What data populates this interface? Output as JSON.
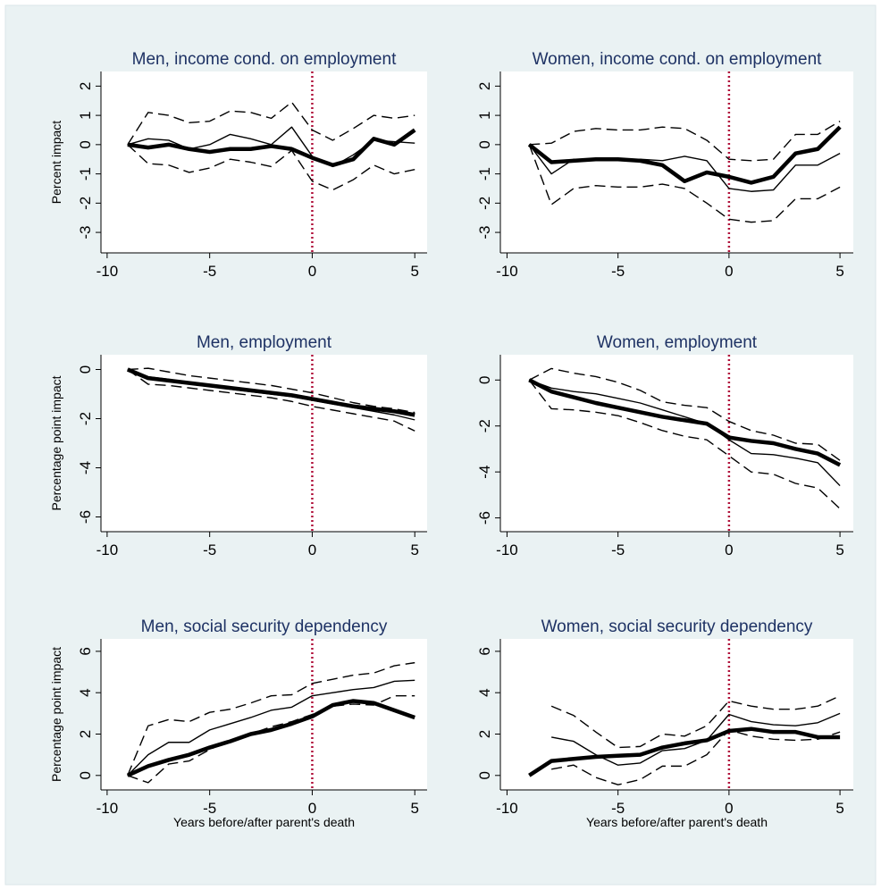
{
  "chart_data": [
    {
      "type": "line",
      "title": "Men, income cond. on employment",
      "ylabel": "Percent impact",
      "x": [
        -9,
        -8,
        -7,
        -6,
        -5,
        -4,
        -3,
        -2,
        -1,
        0,
        1,
        2,
        3,
        4,
        5
      ],
      "xlim": [
        -10.3,
        5.6
      ],
      "xticks": [
        -10,
        -5,
        0,
        5
      ],
      "ylim": [
        -3.7,
        2.5
      ],
      "yticks": [
        2,
        1,
        0,
        -1,
        -2,
        -3
      ],
      "vline": 0,
      "vline_color": "#b0103a",
      "series": [
        {
          "color": "#000000",
          "style": "dashed",
          "values": [
            0,
            1.1,
            1.0,
            0.75,
            0.8,
            1.15,
            1.1,
            0.9,
            1.45,
            0.5,
            0.15,
            0.55,
            1.0,
            0.9,
            1.0
          ]
        },
        {
          "color": "#000000",
          "style": "dashed",
          "values": [
            0,
            -0.65,
            -0.7,
            -0.95,
            -0.8,
            -0.5,
            -0.6,
            -0.75,
            -0.2,
            -1.25,
            -1.55,
            -1.2,
            -0.7,
            -1.0,
            -0.85
          ]
        },
        {
          "color": "#000000",
          "style": "solid",
          "values": [
            0,
            0.2,
            0.15,
            -0.15,
            0,
            0.35,
            0.2,
            0,
            0.6,
            -0.4,
            -0.75,
            -0.35,
            0.15,
            0.1,
            0.05
          ]
        },
        {
          "color": "#000000",
          "style": "bold",
          "values": [
            0,
            -0.1,
            0,
            -0.15,
            -0.25,
            -0.15,
            -0.15,
            -0.05,
            -0.15,
            -0.45,
            -0.7,
            -0.5,
            0.2,
            0,
            0.5
          ]
        }
      ]
    },
    {
      "type": "line",
      "title": "Women, income cond. on employment",
      "x": [
        -9,
        -8,
        -7,
        -6,
        -5,
        -4,
        -3,
        -2,
        -1,
        0,
        1,
        2,
        3,
        4,
        5
      ],
      "xlim": [
        -10.3,
        5.6
      ],
      "xticks": [
        -10,
        -5,
        0,
        5
      ],
      "ylim": [
        -3.7,
        2.5
      ],
      "yticks": [
        2,
        1,
        0,
        -1,
        -2,
        -3
      ],
      "vline": 0,
      "vline_color": "#b0103a",
      "series": [
        {
          "color": "#000000",
          "style": "dashed",
          "values": [
            0,
            0.05,
            0.45,
            0.55,
            0.5,
            0.5,
            0.6,
            0.55,
            0.15,
            -0.5,
            -0.55,
            -0.5,
            0.35,
            0.35,
            0.8
          ]
        },
        {
          "color": "#000000",
          "style": "dashed",
          "values": [
            0,
            -2.05,
            -1.5,
            -1.4,
            -1.45,
            -1.45,
            -1.35,
            -1.5,
            -2.0,
            -2.55,
            -2.65,
            -2.6,
            -1.85,
            -1.85,
            -1.45
          ]
        },
        {
          "color": "#000000",
          "style": "solid",
          "values": [
            0,
            -1.0,
            -0.5,
            -0.5,
            -0.5,
            -0.5,
            -0.55,
            -0.4,
            -0.55,
            -1.5,
            -1.6,
            -1.55,
            -0.7,
            -0.7,
            -0.3
          ]
        },
        {
          "color": "#000000",
          "style": "bold",
          "values": [
            0,
            -0.6,
            -0.55,
            -0.5,
            -0.5,
            -0.55,
            -0.7,
            -1.25,
            -0.95,
            -1.1,
            -1.3,
            -1.1,
            -0.3,
            -0.15,
            0.6
          ]
        }
      ]
    },
    {
      "type": "line",
      "title": "Men, employment",
      "ylabel": "Percentage point impact",
      "x": [
        -9,
        -8,
        -7,
        -6,
        -5,
        -4,
        -3,
        -2,
        -1,
        0,
        1,
        2,
        3,
        4,
        5
      ],
      "xlim": [
        -10.3,
        5.6
      ],
      "xticks": [
        -10,
        -5,
        0,
        5
      ],
      "ylim": [
        -6.6,
        0.6
      ],
      "yticks": [
        0,
        -2,
        -4,
        -6
      ],
      "vline": 0,
      "vline_color": "#b0103a",
      "series": [
        {
          "color": "#000000",
          "style": "dashed",
          "values": [
            0,
            0.05,
            -0.1,
            -0.25,
            -0.35,
            -0.45,
            -0.55,
            -0.65,
            -0.8,
            -0.95,
            -1.15,
            -1.35,
            -1.5,
            -1.6,
            -1.75
          ]
        },
        {
          "color": "#000000",
          "style": "dashed",
          "values": [
            0,
            -0.6,
            -0.65,
            -0.75,
            -0.85,
            -0.95,
            -1.05,
            -1.15,
            -1.3,
            -1.5,
            -1.65,
            -1.8,
            -1.95,
            -2.1,
            -2.5
          ]
        },
        {
          "color": "#000000",
          "style": "solid",
          "values": [
            0,
            -0.3,
            -0.4,
            -0.55,
            -0.65,
            -0.8,
            -0.9,
            -1.0,
            -1.1,
            -1.25,
            -1.4,
            -1.55,
            -1.7,
            -1.85,
            -2.05
          ]
        },
        {
          "color": "#000000",
          "style": "bold",
          "values": [
            0,
            -0.35,
            -0.45,
            -0.55,
            -0.65,
            -0.75,
            -0.85,
            -0.95,
            -1.05,
            -1.2,
            -1.35,
            -1.5,
            -1.6,
            -1.7,
            -1.85
          ]
        }
      ]
    },
    {
      "type": "line",
      "title": "Women, employment",
      "x": [
        -9,
        -8,
        -7,
        -6,
        -5,
        -4,
        -3,
        -2,
        -1,
        0,
        1,
        2,
        3,
        4,
        5
      ],
      "xlim": [
        -10.3,
        5.6
      ],
      "xticks": [
        -10,
        -5,
        0,
        5
      ],
      "ylim": [
        -6.6,
        1.1
      ],
      "yticks": [
        0,
        -2,
        -4,
        -6
      ],
      "vline": 0,
      "vline_color": "#b0103a",
      "series": [
        {
          "color": "#000000",
          "style": "dashed",
          "values": [
            0,
            0.5,
            0.3,
            0.15,
            -0.1,
            -0.45,
            -0.95,
            -1.1,
            -1.2,
            -1.8,
            -2.2,
            -2.4,
            -2.75,
            -2.8,
            -3.5
          ]
        },
        {
          "color": "#000000",
          "style": "dashed",
          "values": [
            0,
            -1.25,
            -1.3,
            -1.4,
            -1.55,
            -1.85,
            -2.2,
            -2.45,
            -2.6,
            -3.3,
            -4.0,
            -4.1,
            -4.5,
            -4.7,
            -5.6
          ]
        },
        {
          "color": "#000000",
          "style": "solid",
          "values": [
            0,
            -0.35,
            -0.5,
            -0.6,
            -0.8,
            -1.0,
            -1.3,
            -1.6,
            -1.9,
            -2.6,
            -3.2,
            -3.25,
            -3.4,
            -3.6,
            -4.6
          ]
        },
        {
          "color": "#000000",
          "style": "bold",
          "values": [
            0,
            -0.5,
            -0.75,
            -1.0,
            -1.2,
            -1.4,
            -1.6,
            -1.75,
            -1.9,
            -2.5,
            -2.65,
            -2.75,
            -3.0,
            -3.2,
            -3.7
          ]
        }
      ]
    },
    {
      "type": "line",
      "title": "Men, social security dependency",
      "ylabel": "Percentage point impact",
      "xlabel": "Years before/after parent's death",
      "x": [
        -9,
        -8,
        -7,
        -6,
        -5,
        -4,
        -3,
        -2,
        -1,
        0,
        1,
        2,
        3,
        4,
        5
      ],
      "xlim": [
        -10.3,
        5.6
      ],
      "xticks": [
        -10,
        -5,
        0,
        5
      ],
      "ylim": [
        -0.7,
        6.6
      ],
      "yticks": [
        0,
        2,
        4,
        6
      ],
      "vline": 0,
      "vline_color": "#b0103a",
      "series": [
        {
          "color": "#000000",
          "style": "dashed",
          "values": [
            0,
            2.4,
            2.7,
            2.6,
            3.05,
            3.2,
            3.5,
            3.85,
            3.9,
            4.45,
            4.65,
            4.85,
            4.95,
            5.3,
            5.45
          ]
        },
        {
          "color": "#000000",
          "style": "dashed",
          "values": [
            0,
            -0.35,
            0.55,
            0.7,
            1.25,
            1.7,
            2.0,
            2.35,
            2.6,
            2.95,
            3.35,
            3.45,
            3.4,
            3.85,
            3.85
          ]
        },
        {
          "color": "#000000",
          "style": "solid",
          "values": [
            0,
            1.0,
            1.6,
            1.6,
            2.2,
            2.5,
            2.8,
            3.15,
            3.3,
            3.85,
            4.0,
            4.15,
            4.25,
            4.55,
            4.6
          ]
        },
        {
          "color": "#000000",
          "style": "bold",
          "values": [
            0,
            0.45,
            0.75,
            1.0,
            1.35,
            1.65,
            2.0,
            2.2,
            2.5,
            2.85,
            3.4,
            3.6,
            3.5,
            3.15,
            2.8
          ]
        }
      ]
    },
    {
      "type": "line",
      "title": "Women, social security dependency",
      "xlabel": "Years before/after parent's death",
      "x": [
        -9,
        -8,
        -7,
        -6,
        -5,
        -4,
        -3,
        -2,
        -1,
        0,
        1,
        2,
        3,
        4,
        5
      ],
      "xlim": [
        -10.3,
        5.6
      ],
      "xticks": [
        -10,
        -5,
        0,
        5
      ],
      "ylim": [
        -0.7,
        6.6
      ],
      "yticks": [
        0,
        2,
        4,
        6
      ],
      "vline": 0,
      "vline_color": "#b0103a",
      "series": [
        {
          "color": "#000000",
          "style": "dashed",
          "values": [
            null,
            3.35,
            2.9,
            2.1,
            1.35,
            1.4,
            2.0,
            1.9,
            2.4,
            3.6,
            3.35,
            3.2,
            3.2,
            3.35,
            3.85
          ]
        },
        {
          "color": "#000000",
          "style": "dashed",
          "values": [
            null,
            0.3,
            0.5,
            -0.1,
            -0.45,
            -0.2,
            0.45,
            0.45,
            1.0,
            2.2,
            1.9,
            1.75,
            1.7,
            1.75,
            2.1
          ]
        },
        {
          "color": "#000000",
          "style": "solid",
          "values": [
            null,
            1.85,
            1.65,
            1.0,
            0.5,
            0.6,
            1.2,
            1.3,
            1.7,
            2.95,
            2.6,
            2.45,
            2.4,
            2.55,
            3.0
          ]
        },
        {
          "color": "#000000",
          "style": "bold",
          "values": [
            0,
            0.7,
            0.8,
            0.9,
            0.95,
            1.0,
            1.35,
            1.55,
            1.7,
            2.15,
            2.25,
            2.1,
            2.1,
            1.85,
            1.85
          ]
        }
      ]
    }
  ]
}
